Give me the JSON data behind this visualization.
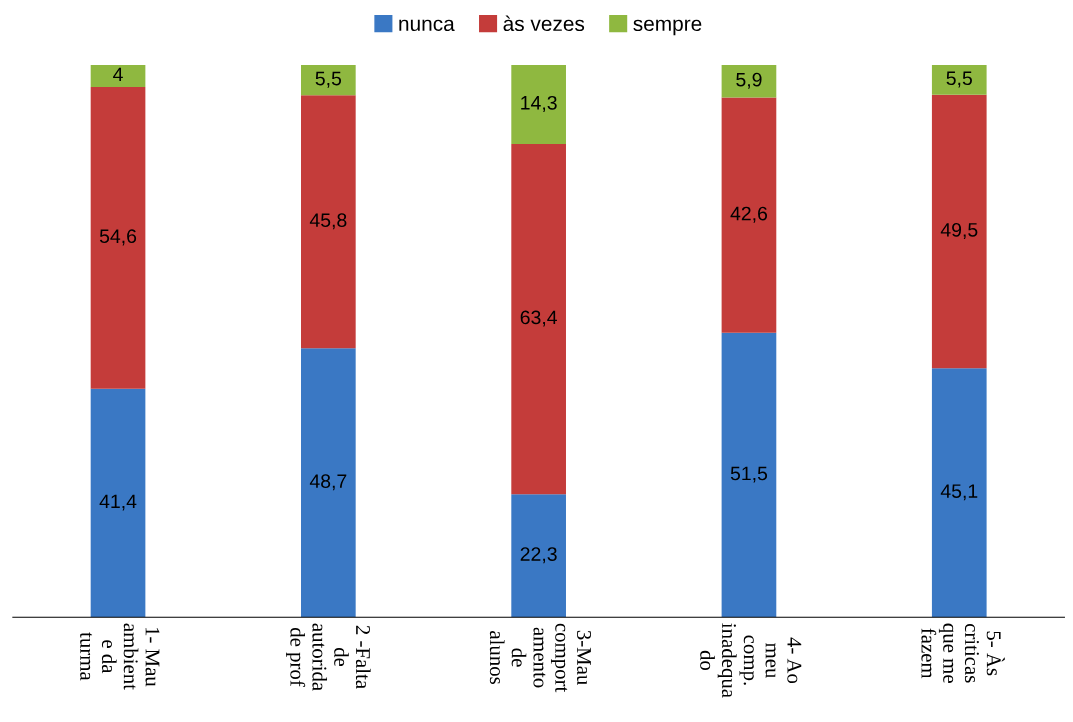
{
  "chart_data": {
    "type": "bar",
    "stacked": true,
    "categories": [
      "1- Mau\nambient\ne da\nturma",
      "2 -Falta\nde\nautorida\nde prof",
      "3-Mau\ncomport\namento\nde\nalunos",
      "4- Ao\nmeu\ncomp.\ninadequa\ndo",
      "5- Às\ncriticas\nque me\nfazem"
    ],
    "series": [
      {
        "name": "nunca",
        "color": "#3a78c4",
        "values": [
          41.4,
          48.7,
          22.3,
          51.5,
          45.1
        ],
        "value_labels": [
          "41,4",
          "48,7",
          "22,3",
          "51,5",
          "45,1"
        ]
      },
      {
        "name": "às vezes",
        "color": "#c43c3a",
        "values": [
          54.6,
          45.8,
          63.4,
          42.6,
          49.5
        ],
        "value_labels": [
          "54,6",
          "45,8",
          "63,4",
          "42,6",
          "49,5"
        ]
      },
      {
        "name": "sempre",
        "color": "#8fb840",
        "values": [
          4,
          5.5,
          14.3,
          5.9,
          5.5
        ],
        "value_labels": [
          "4",
          "5,5",
          "14,3",
          "5,9",
          "5,5"
        ]
      }
    ],
    "ylim": [
      0,
      100
    ],
    "tick_labels": "x",
    "legend": "top",
    "grid": false
  }
}
